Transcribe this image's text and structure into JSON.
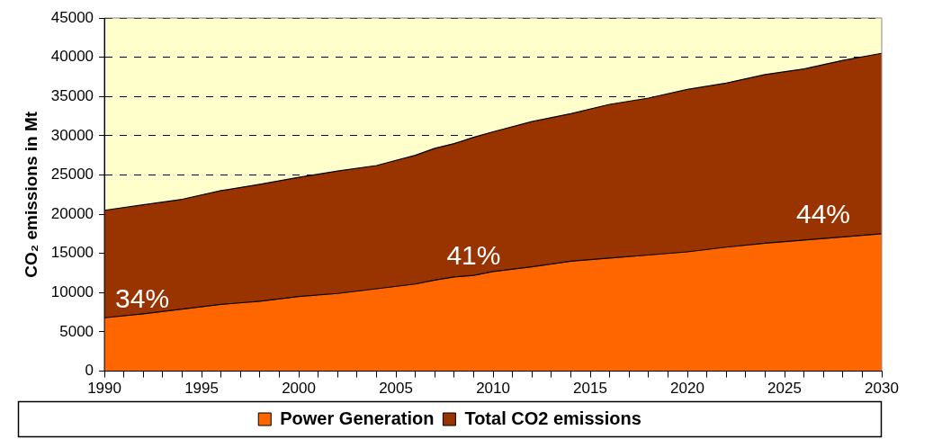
{
  "chart_data": {
    "type": "area",
    "ylabel": "CO₂ emissions in Mt",
    "x": [
      1990,
      1992,
      1994,
      1996,
      1998,
      2000,
      2002,
      2004,
      2006,
      2007,
      2008,
      2009,
      2010,
      2012,
      2014,
      2016,
      2018,
      2020,
      2022,
      2024,
      2026,
      2028,
      2030
    ],
    "series": [
      {
        "name": "Power Generation",
        "color": "#ff6600",
        "values": [
          6800,
          7300,
          7900,
          8500,
          8900,
          9500,
          9900,
          10500,
          11100,
          11600,
          12000,
          12200,
          12700,
          13300,
          14000,
          14400,
          14800,
          15200,
          15800,
          16300,
          16700,
          17100,
          17500
        ]
      },
      {
        "name": "Total CO2 emissions",
        "color": "#993300",
        "values": [
          20500,
          21200,
          21900,
          23000,
          23800,
          24700,
          25500,
          26200,
          27500,
          28400,
          29000,
          29800,
          30500,
          31800,
          32800,
          34000,
          34800,
          35900,
          36700,
          37800,
          38500,
          39600,
          40500
        ]
      }
    ],
    "xlim": [
      1990,
      2030
    ],
    "xticks": [
      1990,
      {
        "value": 1991,
        "label": null
      },
      {
        "value": 1992,
        "label": null
      },
      {
        "value": 1993,
        "label": null
      },
      {
        "value": 1994,
        "label": null
      },
      1995,
      {
        "value": 1996,
        "label": null
      },
      {
        "value": 1997,
        "label": null
      },
      {
        "value": 1998,
        "label": null
      },
      {
        "value": 1999,
        "label": null
      },
      2000,
      {
        "value": 2001,
        "label": null
      },
      {
        "value": 2002,
        "label": null
      },
      {
        "value": 2003,
        "label": null
      },
      {
        "value": 2004,
        "label": null
      },
      2005,
      {
        "value": 2006,
        "label": null
      },
      {
        "value": 2007,
        "label": null
      },
      {
        "value": 2008,
        "label": null
      },
      {
        "value": 2009,
        "label": null
      },
      2010,
      {
        "value": 2011,
        "label": null
      },
      {
        "value": 2012,
        "label": null
      },
      {
        "value": 2013,
        "label": null
      },
      {
        "value": 2014,
        "label": null
      },
      2015,
      {
        "value": 2016,
        "label": null
      },
      {
        "value": 2017,
        "label": null
      },
      {
        "value": 2018,
        "label": null
      },
      {
        "value": 2019,
        "label": null
      },
      2020,
      {
        "value": 2021,
        "label": null
      },
      {
        "value": 2022,
        "label": null
      },
      {
        "value": 2023,
        "label": null
      },
      {
        "value": 2024,
        "label": null
      },
      2025,
      {
        "value": 2026,
        "label": null
      },
      {
        "value": 2027,
        "label": null
      },
      {
        "value": 2028,
        "label": null
      },
      {
        "value": 2029,
        "label": null
      },
      2030
    ],
    "ylim": [
      0,
      45000
    ],
    "yticks": [
      0,
      5000,
      10000,
      15000,
      20000,
      25000,
      30000,
      35000,
      40000,
      45000
    ],
    "bands": [
      {
        "axis": "y",
        "from": 20500,
        "to": 45000,
        "color": "#ffffcc"
      }
    ],
    "grid": "y",
    "legend": "bottom",
    "marker": "none",
    "line_style": "solid",
    "annotations": [
      "34%",
      "41%",
      "44%"
    ]
  }
}
